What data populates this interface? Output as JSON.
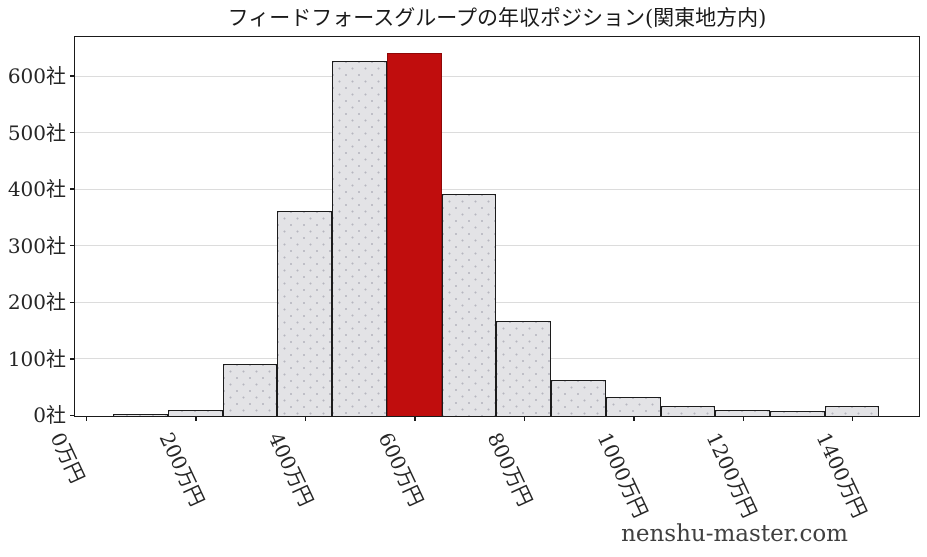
{
  "watermark": "nenshu-master.com",
  "colors": {
    "bar_fill": "#e3e3e6",
    "bar_dot": "#b6b6bf",
    "bar_edge": "#1c1c1c",
    "highlight_fill": "#c00d0d",
    "grid": "#dcdcdc",
    "axis": "#1a1a1a",
    "tick_text": "#262626",
    "watermark_text": "#404040"
  },
  "chart_data": {
    "type": "bar",
    "title": "フィードフォースグループの年収ポジション(関東地方内)",
    "xlabel": "",
    "ylabel": "",
    "x_unit": "万円",
    "y_unit": "社",
    "bin_width": 100,
    "categories": [
      100,
      200,
      300,
      400,
      500,
      600,
      700,
      800,
      900,
      1000,
      1100,
      1200,
      1300,
      1400
    ],
    "values": [
      3,
      10,
      92,
      362,
      627,
      641,
      392,
      168,
      64,
      33,
      17,
      11,
      8,
      18
    ],
    "highlight_index": 5,
    "highlight_category": 600,
    "x_tick_values": [
      0,
      200,
      400,
      600,
      800,
      1000,
      1200,
      1400
    ],
    "x_tick_labels": [
      "0万円",
      "200万円",
      "400万円",
      "600万円",
      "800万円",
      "1000万円",
      "1200万円",
      "1400万円"
    ],
    "y_tick_values": [
      0,
      100,
      200,
      300,
      400,
      500,
      600
    ],
    "y_tick_labels": [
      "0社",
      "100社",
      "200社",
      "300社",
      "400社",
      "500社",
      "600社"
    ],
    "xlim": [
      -20,
      1520
    ],
    "ylim": [
      0,
      668
    ],
    "grid": "horizontal",
    "legend": "none"
  }
}
